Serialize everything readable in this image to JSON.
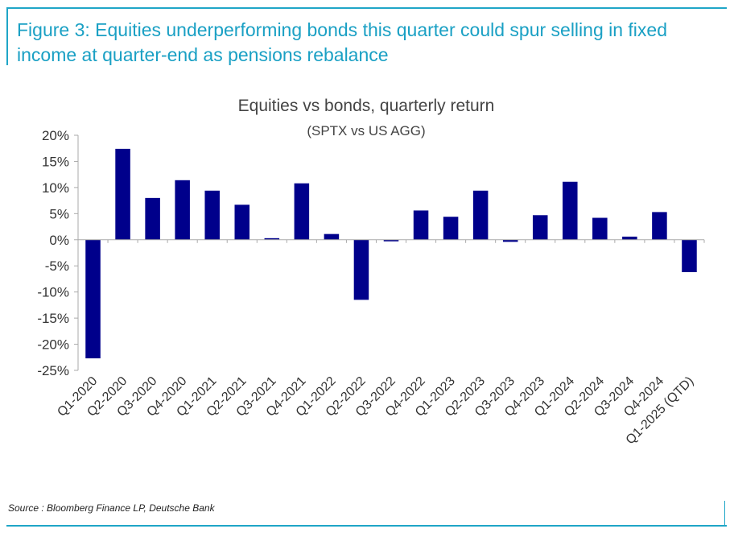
{
  "figure": {
    "title": "Figure 3: Equities underperforming bonds this quarter could spur selling in fixed income at quarter-end as pensions rebalance",
    "source": "Source : Bloomberg Finance LP, Deutsche Bank"
  },
  "colors": {
    "accent": "#1fa6c7",
    "bar": "#00008b",
    "axis": "#aaaaaa"
  },
  "chart_data": {
    "type": "bar",
    "title": "Equities vs bonds, quarterly return",
    "subtitle": "(SPTX vs US AGG)",
    "xlabel": "",
    "ylabel": "",
    "ylim": [
      -25,
      20
    ],
    "yticks": [
      20,
      15,
      10,
      5,
      0,
      -5,
      -10,
      -15,
      -20,
      -25
    ],
    "ytick_labels": [
      "20%",
      "15%",
      "10%",
      "5%",
      "0%",
      "-5%",
      "-10%",
      "-15%",
      "-20%",
      "-25%"
    ],
    "grid": false,
    "legend": "none",
    "categories": [
      "Q1-2020",
      "Q2-2020",
      "Q3-2020",
      "Q4-2020",
      "Q1-2021",
      "Q2-2021",
      "Q3-2021",
      "Q4-2021",
      "Q1-2022",
      "Q2-2022",
      "Q3-2022",
      "Q4-2022",
      "Q1-2023",
      "Q2-2023",
      "Q3-2023",
      "Q4-2023",
      "Q1-2024",
      "Q2-2024",
      "Q3-2024",
      "Q4-2024",
      "Q1-2025 (QTD)"
    ],
    "values": [
      -22.7,
      17.4,
      8.0,
      11.4,
      9.4,
      6.7,
      0.3,
      10.8,
      1.1,
      -11.5,
      -0.3,
      5.6,
      4.4,
      9.4,
      -0.4,
      4.7,
      11.1,
      4.2,
      0.6,
      5.3,
      -6.2
    ]
  }
}
